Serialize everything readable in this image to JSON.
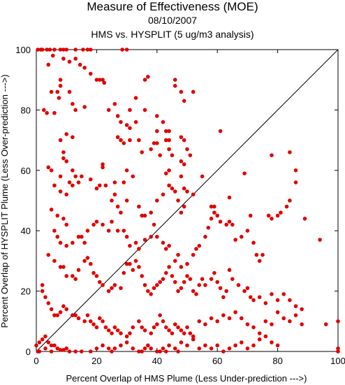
{
  "chart_data": {
    "type": "scatter",
    "title": "Measure of Effectiveness (MOE)",
    "subtitle_date": "08/10/2007",
    "subtitle_comparison": "HMS vs. HYSPLIT  (5 ug/m3 analysis)",
    "xlabel": "Percent Overlap of HMS Plume (Less Under-prediction --->)",
    "ylabel": "Percent Overlap of HYSPLIT Plume (Less Over-prediction --->)",
    "xlim": [
      0,
      100
    ],
    "ylim": [
      0,
      100
    ],
    "xticks": [
      0,
      20,
      40,
      60,
      80,
      100
    ],
    "yticks": [
      0,
      20,
      40,
      60,
      80,
      100
    ],
    "grid": false,
    "reference_line": {
      "from": [
        0,
        0
      ],
      "to": [
        100,
        100
      ],
      "color": "#000000"
    },
    "point_color": "#e00000",
    "points": [
      [
        0.5,
        100
      ],
      [
        1.5,
        100
      ],
      [
        2,
        100
      ],
      [
        3.5,
        100
      ],
      [
        4.5,
        100
      ],
      [
        6,
        100
      ],
      [
        8,
        100
      ],
      [
        9,
        100
      ],
      [
        10,
        100
      ],
      [
        13,
        100
      ],
      [
        15.5,
        100
      ],
      [
        17,
        100
      ],
      [
        18,
        100
      ],
      [
        28.5,
        100
      ],
      [
        30,
        100
      ],
      [
        5.5,
        98
      ],
      [
        4,
        95
      ],
      [
        9,
        97
      ],
      [
        11,
        96
      ],
      [
        13,
        97
      ],
      [
        14.5,
        95
      ],
      [
        16,
        94
      ],
      [
        18,
        92
      ],
      [
        20,
        90
      ],
      [
        21,
        90
      ],
      [
        22,
        90
      ],
      [
        22.5,
        89
      ],
      [
        8,
        90
      ],
      [
        8,
        88
      ],
      [
        11,
        86
      ],
      [
        5,
        86
      ],
      [
        7,
        86
      ],
      [
        7.5,
        84
      ],
      [
        2.5,
        80
      ],
      [
        3.5,
        79
      ],
      [
        6,
        79
      ],
      [
        12,
        82
      ],
      [
        13,
        80
      ],
      [
        16,
        81
      ],
      [
        24,
        80
      ],
      [
        26,
        82
      ],
      [
        27,
        78
      ],
      [
        28,
        76
      ],
      [
        30,
        75
      ],
      [
        31,
        74
      ],
      [
        31,
        80
      ],
      [
        33,
        76
      ],
      [
        33,
        84
      ],
      [
        36,
        90
      ],
      [
        37,
        91
      ],
      [
        36,
        80
      ],
      [
        40,
        78
      ],
      [
        40,
        73
      ],
      [
        42,
        76
      ],
      [
        43,
        73
      ],
      [
        44,
        73
      ],
      [
        44,
        70
      ],
      [
        46,
        90
      ],
      [
        46,
        88
      ],
      [
        48,
        86
      ],
      [
        49,
        83
      ],
      [
        52,
        86
      ],
      [
        61,
        73
      ],
      [
        27,
        71
      ],
      [
        28,
        70
      ],
      [
        29,
        69
      ],
      [
        31,
        70
      ],
      [
        34,
        70
      ],
      [
        35,
        66
      ],
      [
        38,
        67
      ],
      [
        39,
        69
      ],
      [
        40,
        69
      ],
      [
        41,
        65
      ],
      [
        43,
        70
      ],
      [
        44,
        67
      ],
      [
        45,
        65
      ],
      [
        48,
        71
      ],
      [
        49,
        70
      ],
      [
        50,
        67
      ],
      [
        48,
        63
      ],
      [
        49,
        62
      ],
      [
        51,
        65
      ],
      [
        43,
        59
      ],
      [
        44,
        60
      ],
      [
        48,
        58
      ],
      [
        55,
        58
      ],
      [
        8,
        70
      ],
      [
        10,
        72
      ],
      [
        12,
        71
      ],
      [
        9,
        66
      ],
      [
        9,
        64
      ],
      [
        10,
        63
      ],
      [
        12,
        60
      ],
      [
        13,
        58
      ],
      [
        11,
        56
      ],
      [
        8,
        58
      ],
      [
        6,
        55
      ],
      [
        5,
        60
      ],
      [
        4,
        61
      ],
      [
        8,
        53
      ],
      [
        10,
        52
      ],
      [
        12,
        55
      ],
      [
        14,
        56
      ],
      [
        15,
        58
      ],
      [
        18,
        57
      ],
      [
        20,
        54
      ],
      [
        21,
        55
      ],
      [
        22,
        62
      ],
      [
        22,
        61
      ],
      [
        23,
        55
      ],
      [
        26,
        56
      ],
      [
        29,
        56
      ],
      [
        30,
        60
      ],
      [
        32,
        58
      ],
      [
        25,
        50
      ],
      [
        26,
        52
      ],
      [
        27,
        48
      ],
      [
        28,
        46
      ],
      [
        30,
        50
      ],
      [
        34,
        48
      ],
      [
        35,
        45
      ],
      [
        36,
        45
      ],
      [
        38,
        46
      ],
      [
        39,
        42
      ],
      [
        40,
        50
      ],
      [
        42,
        52
      ],
      [
        44,
        55
      ],
      [
        45,
        54
      ],
      [
        46,
        53
      ],
      [
        47,
        50
      ],
      [
        50,
        53
      ],
      [
        52,
        52
      ],
      [
        48,
        46
      ],
      [
        49,
        48
      ],
      [
        49,
        54
      ],
      [
        5,
        47
      ],
      [
        7,
        45
      ],
      [
        9,
        44
      ],
      [
        10,
        42
      ],
      [
        6,
        40
      ],
      [
        7,
        38
      ],
      [
        8,
        36
      ],
      [
        10,
        35
      ],
      [
        12,
        36
      ],
      [
        14,
        38
      ],
      [
        15,
        38
      ],
      [
        16,
        36
      ],
      [
        17,
        40
      ],
      [
        19,
        42
      ],
      [
        20,
        43
      ],
      [
        22,
        42
      ],
      [
        24,
        40
      ],
      [
        25,
        43
      ],
      [
        27,
        40
      ],
      [
        29,
        40
      ],
      [
        30,
        38
      ],
      [
        31,
        35
      ],
      [
        33,
        36
      ],
      [
        34,
        34
      ],
      [
        36,
        37
      ],
      [
        38,
        38
      ],
      [
        40,
        38
      ],
      [
        42,
        36
      ],
      [
        43,
        34
      ],
      [
        44,
        35
      ],
      [
        46,
        30
      ],
      [
        47,
        32
      ],
      [
        48,
        28
      ],
      [
        50,
        29
      ],
      [
        52,
        32
      ],
      [
        53,
        34
      ],
      [
        54,
        35
      ],
      [
        56,
        38
      ],
      [
        57,
        41
      ],
      [
        58,
        44
      ],
      [
        59,
        46
      ],
      [
        58,
        48
      ],
      [
        60,
        45
      ],
      [
        61,
        43
      ],
      [
        63,
        42
      ],
      [
        64,
        43
      ],
      [
        65,
        42
      ],
      [
        66,
        37
      ],
      [
        68,
        38
      ],
      [
        70,
        40
      ],
      [
        72,
        36
      ],
      [
        73,
        32
      ],
      [
        74,
        30
      ],
      [
        75,
        32
      ],
      [
        77,
        45
      ],
      [
        78,
        44
      ],
      [
        80,
        45
      ],
      [
        81,
        46
      ],
      [
        83,
        48
      ],
      [
        84,
        50
      ],
      [
        86,
        56
      ],
      [
        86,
        60
      ],
      [
        89,
        44
      ],
      [
        94,
        37
      ],
      [
        78,
        65
      ],
      [
        84,
        66
      ],
      [
        69,
        59
      ],
      [
        64,
        51
      ],
      [
        59,
        48
      ],
      [
        71,
        45
      ],
      [
        4,
        32
      ],
      [
        6,
        30
      ],
      [
        8,
        28
      ],
      [
        9,
        28
      ],
      [
        10,
        25
      ],
      [
        12,
        25
      ],
      [
        13,
        24
      ],
      [
        14,
        27
      ],
      [
        16,
        30
      ],
      [
        17,
        31
      ],
      [
        18,
        29
      ],
      [
        19,
        26
      ],
      [
        20,
        25
      ],
      [
        21,
        23
      ],
      [
        22,
        22
      ],
      [
        24,
        20
      ],
      [
        25,
        21
      ],
      [
        26,
        22
      ],
      [
        28,
        21
      ],
      [
        29,
        26
      ],
      [
        30,
        29
      ],
      [
        31,
        29
      ],
      [
        32,
        27
      ],
      [
        33,
        30
      ],
      [
        34,
        28
      ],
      [
        35,
        25
      ],
      [
        36,
        22
      ],
      [
        37,
        20
      ],
      [
        38,
        19
      ],
      [
        39,
        21
      ],
      [
        40,
        22
      ],
      [
        41,
        23
      ],
      [
        42,
        24
      ],
      [
        43,
        26
      ],
      [
        44,
        28
      ],
      [
        45,
        25
      ],
      [
        46,
        23
      ],
      [
        47,
        20
      ],
      [
        48,
        21
      ],
      [
        49,
        23
      ],
      [
        50,
        25
      ],
      [
        51,
        24
      ],
      [
        52,
        20
      ],
      [
        53,
        19
      ],
      [
        54,
        22
      ],
      [
        55,
        24
      ],
      [
        56,
        22
      ],
      [
        58,
        24
      ],
      [
        59,
        26
      ],
      [
        60,
        23
      ],
      [
        61,
        21
      ],
      [
        62,
        18
      ],
      [
        63,
        20
      ],
      [
        64,
        27
      ],
      [
        65,
        24
      ],
      [
        67,
        22
      ],
      [
        69,
        20
      ],
      [
        70,
        21
      ],
      [
        71,
        18
      ],
      [
        72,
        17
      ],
      [
        74,
        18
      ],
      [
        76,
        16
      ],
      [
        78,
        19
      ],
      [
        80,
        17
      ],
      [
        82,
        19
      ],
      [
        84,
        17
      ],
      [
        86,
        15
      ],
      [
        88,
        14
      ],
      [
        2,
        22
      ],
      [
        2,
        20
      ],
      [
        3,
        18
      ],
      [
        4,
        16
      ],
      [
        5,
        14
      ],
      [
        6,
        12
      ],
      [
        7,
        12
      ],
      [
        8,
        13
      ],
      [
        9,
        15
      ],
      [
        10,
        14
      ],
      [
        12,
        12
      ],
      [
        13,
        12
      ],
      [
        14,
        11
      ],
      [
        16,
        10
      ],
      [
        17,
        12
      ],
      [
        18,
        10
      ],
      [
        19,
        9
      ],
      [
        20,
        8
      ],
      [
        21,
        11
      ],
      [
        22,
        10
      ],
      [
        23,
        8
      ],
      [
        24,
        7
      ],
      [
        25,
        6
      ],
      [
        26,
        8
      ],
      [
        27,
        7
      ],
      [
        28,
        6
      ],
      [
        30,
        5
      ],
      [
        31,
        6
      ],
      [
        32,
        8
      ],
      [
        34,
        10
      ],
      [
        35,
        8
      ],
      [
        36,
        7
      ],
      [
        38,
        6
      ],
      [
        39,
        8
      ],
      [
        40,
        9
      ],
      [
        41,
        12
      ],
      [
        42,
        10
      ],
      [
        43,
        8
      ],
      [
        44,
        7
      ],
      [
        45,
        6
      ],
      [
        46,
        9
      ],
      [
        47,
        8
      ],
      [
        48,
        7
      ],
      [
        49,
        6
      ],
      [
        50,
        8
      ],
      [
        51,
        6
      ],
      [
        52,
        5
      ],
      [
        54,
        10
      ],
      [
        56,
        9
      ],
      [
        58,
        11
      ],
      [
        60,
        10
      ],
      [
        62,
        12
      ],
      [
        64,
        11
      ],
      [
        66,
        13
      ],
      [
        68,
        11
      ],
      [
        70,
        9
      ],
      [
        72,
        8
      ],
      [
        74,
        6
      ],
      [
        76,
        10
      ],
      [
        78,
        9
      ],
      [
        80,
        13
      ],
      [
        82,
        11
      ],
      [
        84,
        10
      ],
      [
        86,
        12
      ],
      [
        88,
        9
      ],
      [
        96,
        9
      ],
      [
        100,
        10
      ],
      [
        0,
        2
      ],
      [
        1,
        3
      ],
      [
        2,
        4
      ],
      [
        3,
        5
      ],
      [
        4,
        3
      ],
      [
        5,
        2
      ],
      [
        6,
        2
      ],
      [
        7,
        1
      ],
      [
        8,
        0.5
      ],
      [
        9,
        0.5
      ],
      [
        10,
        1
      ],
      [
        11,
        0
      ],
      [
        13,
        0
      ],
      [
        15,
        0
      ],
      [
        18,
        0
      ],
      [
        20,
        1
      ],
      [
        22,
        2
      ],
      [
        24,
        1
      ],
      [
        25,
        0
      ],
      [
        26,
        1
      ],
      [
        28,
        2
      ],
      [
        30,
        3
      ],
      [
        32,
        1
      ],
      [
        34,
        0
      ],
      [
        35,
        0
      ],
      [
        36,
        1
      ],
      [
        37,
        2
      ],
      [
        38,
        1
      ],
      [
        40,
        0
      ],
      [
        41,
        0
      ],
      [
        42,
        1
      ],
      [
        43,
        0
      ],
      [
        44,
        2
      ],
      [
        46,
        1
      ],
      [
        47,
        0
      ],
      [
        48,
        3
      ],
      [
        50,
        2
      ],
      [
        52,
        4
      ],
      [
        54,
        1
      ],
      [
        56,
        2
      ],
      [
        58,
        1
      ],
      [
        60,
        2
      ],
      [
        62,
        0
      ],
      [
        64,
        1
      ],
      [
        66,
        2
      ],
      [
        68,
        3
      ],
      [
        70,
        1
      ],
      [
        72,
        2
      ],
      [
        74,
        4
      ],
      [
        76,
        5
      ],
      [
        78,
        3
      ],
      [
        80,
        2
      ],
      [
        100,
        1
      ],
      [
        100,
        0
      ],
      [
        1,
        0
      ],
      [
        0.5,
        0
      ],
      [
        3,
        1
      ],
      [
        5,
        0
      ]
    ]
  }
}
